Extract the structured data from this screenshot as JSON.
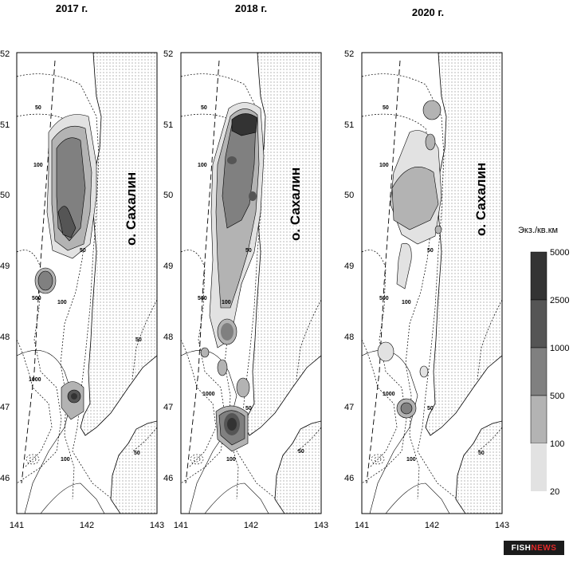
{
  "years": [
    "2017 г.",
    "2018 г.",
    "2020 г."
  ],
  "island_label": "о. Сахалин",
  "lat_ticks": [
    "52",
    "51",
    "50",
    "49",
    "48",
    "47",
    "46"
  ],
  "lon_ticks": [
    "141",
    "142",
    "143"
  ],
  "contour_labels": [
    "50",
    "100",
    "500",
    "1000"
  ],
  "legend": {
    "title": "Экз./кв.км",
    "classes": [
      {
        "label": "5000",
        "color": "#333333"
      },
      {
        "label": "2500",
        "color": "#555555"
      },
      {
        "label": "1000",
        "color": "#808080"
      },
      {
        "label": "500",
        "color": "#b3b3b3"
      },
      {
        "label": "100",
        "color": "#e2e2e2"
      },
      {
        "label": "20",
        "color": null
      }
    ]
  },
  "colors": {
    "land_dots": "#555555",
    "frame": "#000000"
  },
  "brand": {
    "part1": "FISH",
    "part2": "NEWS"
  }
}
